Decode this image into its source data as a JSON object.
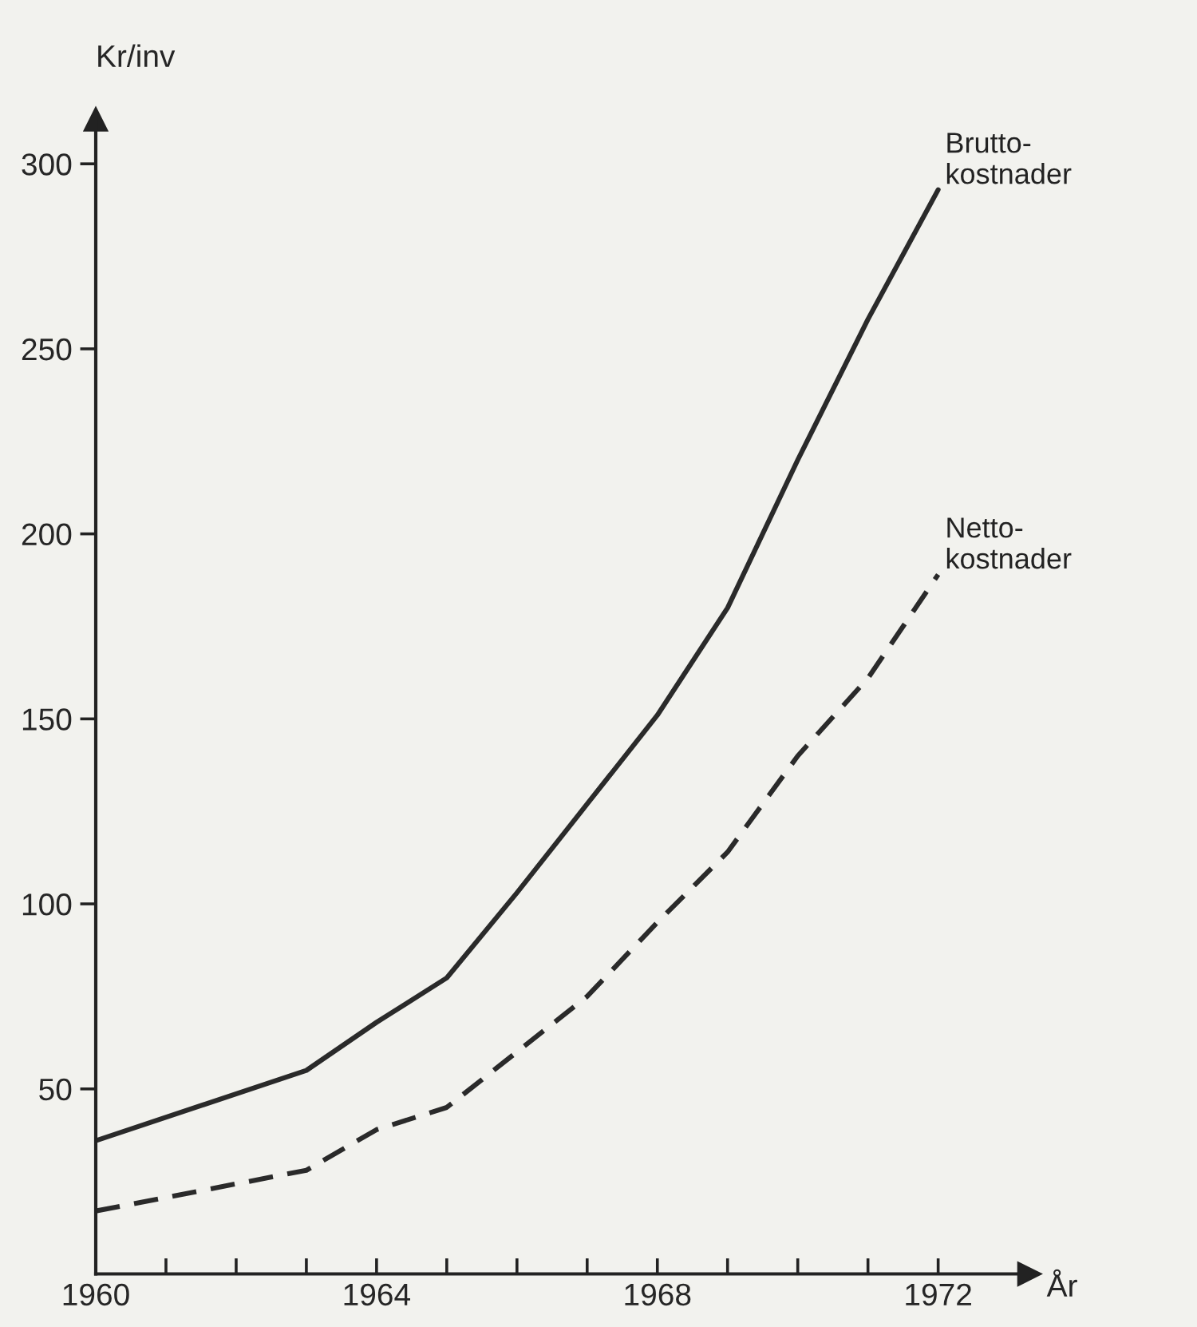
{
  "chart_data": {
    "type": "line",
    "ylabel": "Kr/inv",
    "xlabel": "År",
    "x": [
      1960,
      1963,
      1964,
      1965,
      1966,
      1967,
      1968,
      1969,
      1970,
      1971,
      1972
    ],
    "series": [
      {
        "name": "Brutto-\nkostnader",
        "color": "#2a2a2a",
        "line_style": "solid",
        "values": [
          36,
          55,
          68,
          80,
          103,
          127,
          151,
          180,
          220,
          258,
          293
        ]
      },
      {
        "name": "Netto-\nkostnader",
        "color": "#2a2a2a",
        "line_style": "dashed",
        "values": [
          17,
          28,
          39,
          45,
          60,
          75,
          95,
          114,
          140,
          161,
          189
        ]
      }
    ],
    "xlim": [
      1960,
      1973.3
    ],
    "ylim": [
      0,
      312
    ],
    "xticks": [
      1960,
      {
        "value": 1961,
        "label": null
      },
      {
        "value": 1962,
        "label": null
      },
      {
        "value": 1963,
        "label": null
      },
      1964,
      {
        "value": 1965,
        "label": null
      },
      {
        "value": 1966,
        "label": null
      },
      {
        "value": 1967,
        "label": null
      },
      1968,
      {
        "value": 1969,
        "label": null
      },
      {
        "value": 1970,
        "label": null
      },
      {
        "value": 1971,
        "label": null
      },
      1972
    ],
    "yticks": [
      50,
      100,
      150,
      200,
      250,
      300
    ],
    "grid": false,
    "legend": false
  }
}
